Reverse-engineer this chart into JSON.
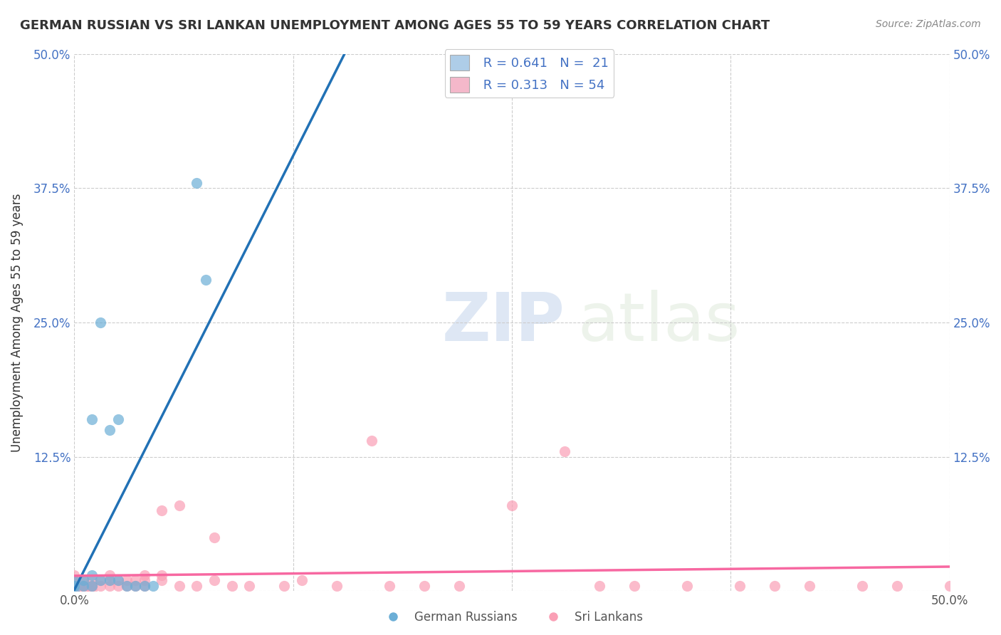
{
  "title": "GERMAN RUSSIAN VS SRI LANKAN UNEMPLOYMENT AMONG AGES 55 TO 59 YEARS CORRELATION CHART",
  "source": "Source: ZipAtlas.com",
  "ylabel": "Unemployment Among Ages 55 to 59 years",
  "xlim": [
    0,
    0.5
  ],
  "ylim": [
    0,
    0.5
  ],
  "xticks": [
    0.0,
    0.125,
    0.25,
    0.375,
    0.5
  ],
  "yticks": [
    0.0,
    0.125,
    0.25,
    0.375,
    0.5
  ],
  "german_russian_R": "0.641",
  "german_russian_N": "21",
  "sri_lankan_R": "0.313",
  "sri_lankan_N": "54",
  "blue_color": "#6baed6",
  "pink_color": "#fa9fb5",
  "blue_line_color": "#2171b5",
  "pink_line_color": "#f768a1",
  "german_russian_x": [
    0.0,
    0.0,
    0.0,
    0.0,
    0.005,
    0.005,
    0.01,
    0.01,
    0.01,
    0.015,
    0.015,
    0.02,
    0.02,
    0.025,
    0.025,
    0.03,
    0.035,
    0.04,
    0.045,
    0.07,
    0.075
  ],
  "german_russian_y": [
    0.0,
    0.005,
    0.005,
    0.01,
    0.005,
    0.01,
    0.005,
    0.015,
    0.16,
    0.01,
    0.25,
    0.01,
    0.15,
    0.01,
    0.16,
    0.005,
    0.005,
    0.005,
    0.005,
    0.38,
    0.29
  ],
  "sri_lankan_x": [
    0.0,
    0.0,
    0.0,
    0.0,
    0.005,
    0.005,
    0.005,
    0.005,
    0.01,
    0.01,
    0.01,
    0.01,
    0.015,
    0.015,
    0.02,
    0.02,
    0.02,
    0.025,
    0.025,
    0.03,
    0.03,
    0.035,
    0.035,
    0.04,
    0.04,
    0.04,
    0.05,
    0.05,
    0.05,
    0.06,
    0.06,
    0.07,
    0.08,
    0.08,
    0.09,
    0.1,
    0.12,
    0.13,
    0.15,
    0.17,
    0.18,
    0.2,
    0.22,
    0.25,
    0.28,
    0.3,
    0.32,
    0.35,
    0.38,
    0.4,
    0.42,
    0.45,
    0.47,
    0.5
  ],
  "sri_lankan_y": [
    0.0,
    0.005,
    0.01,
    0.015,
    0.0,
    0.005,
    0.005,
    0.01,
    0.0,
    0.005,
    0.005,
    0.01,
    0.005,
    0.01,
    0.005,
    0.01,
    0.015,
    0.005,
    0.01,
    0.005,
    0.01,
    0.005,
    0.01,
    0.005,
    0.01,
    0.015,
    0.01,
    0.015,
    0.075,
    0.005,
    0.08,
    0.005,
    0.01,
    0.05,
    0.005,
    0.005,
    0.005,
    0.01,
    0.005,
    0.14,
    0.005,
    0.005,
    0.005,
    0.08,
    0.13,
    0.005,
    0.005,
    0.005,
    0.005,
    0.005,
    0.005,
    0.005,
    0.005,
    0.005
  ]
}
